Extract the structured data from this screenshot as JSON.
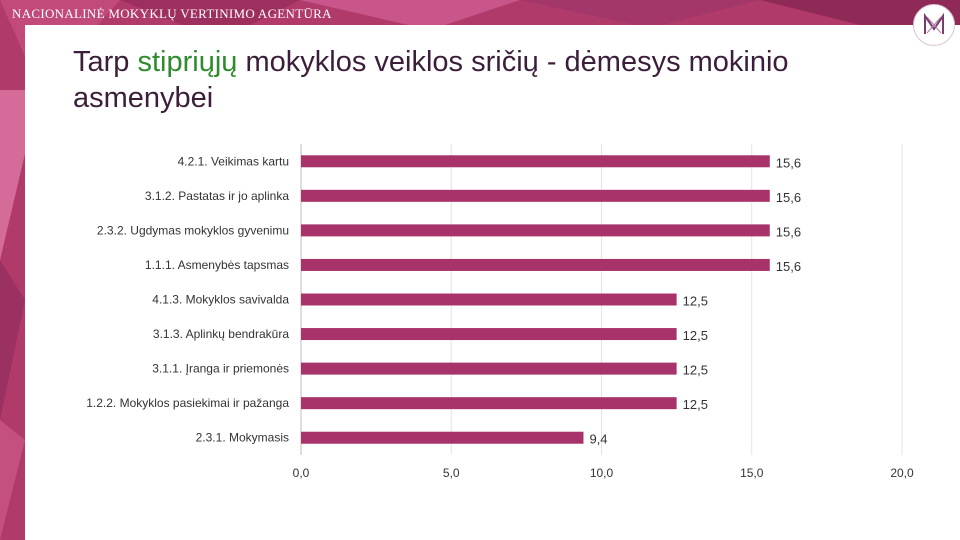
{
  "header": {
    "org_name": "NACIONALINĖ MOKYKLŲ VERTINIMO AGENTŪRA",
    "title_prefix": "Tarp ",
    "title_accent": "stipriųjų",
    "title_suffix": " mokyklos veiklos sričių - dėmesys mokinio asmenybei"
  },
  "colors": {
    "bar": "#a8336a",
    "accent_green": "#2e8b2e",
    "title": "#3b1f3a",
    "background": "#b03a6a"
  },
  "chart_data": {
    "type": "bar",
    "orientation": "horizontal",
    "categories": [
      "4.2.1. Veikimas kartu",
      "3.1.2. Pastatas ir jo aplinka",
      "2.3.2. Ugdymas mokyklos gyvenimu",
      "1.1.1. Asmenybės tapsmas",
      "4.1.3. Mokyklos savivalda",
      "3.1.3. Aplinkų bendrakūra",
      "3.1.1. Įranga ir priemonės",
      "1.2.2. Mokyklos pasiekimai ir pažanga",
      "2.3.1. Mokymasis"
    ],
    "values": [
      15.6,
      15.6,
      15.6,
      15.6,
      12.5,
      12.5,
      12.5,
      12.5,
      9.4
    ],
    "value_labels": [
      "15,6",
      "15,6",
      "15,6",
      "15,6",
      "12,5",
      "12,5",
      "12,5",
      "12,5",
      "9,4"
    ],
    "x_ticks": [
      "0,0",
      "5,0",
      "10,0",
      "15,0",
      "20,0"
    ],
    "xlim": [
      0,
      20
    ],
    "grid": true,
    "legend": "none"
  }
}
